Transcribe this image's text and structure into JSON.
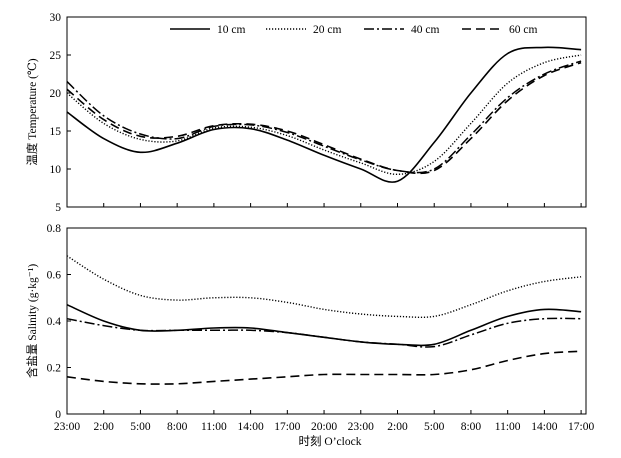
{
  "chart_data": [
    {
      "type": "line",
      "title": "",
      "xlabel": "",
      "ylabel": "温度 Temperature (℃)",
      "ylim": [
        5,
        30
      ],
      "yticks": [
        "5",
        "10",
        "15",
        "20",
        "25",
        "30"
      ],
      "x": [
        0,
        3,
        6,
        9,
        12,
        15,
        18,
        21,
        24,
        27,
        30,
        33,
        36,
        39,
        42
      ],
      "series": [
        {
          "name": "10 cm",
          "values": [
            17.5,
            14.0,
            12.2,
            13.4,
            15.2,
            15.3,
            13.8,
            11.8,
            10.0,
            8.4,
            13.5,
            20.0,
            25.2,
            26.0,
            25.7
          ]
        },
        {
          "name": "20 cm",
          "values": [
            20.0,
            16.0,
            13.9,
            13.7,
            15.4,
            15.5,
            14.4,
            12.5,
            10.8,
            9.3,
            11.0,
            16.0,
            21.3,
            24.0,
            25.0
          ]
        },
        {
          "name": "40 cm",
          "values": [
            21.5,
            17.0,
            14.6,
            14.0,
            15.6,
            15.8,
            14.8,
            13.0,
            11.2,
            9.8,
            10.0,
            14.5,
            19.4,
            22.5,
            24.2
          ]
        },
        {
          "name": "60 cm",
          "values": [
            20.5,
            16.5,
            14.3,
            14.3,
            15.7,
            15.9,
            15.0,
            13.2,
            11.3,
            9.8,
            9.8,
            14.0,
            19.0,
            22.3,
            24.0
          ]
        }
      ],
      "legend": "top-right"
    },
    {
      "type": "line",
      "title": "",
      "xlabel": "时刻 O’clock",
      "ylabel": "含盐量 Salinity (g·kg⁻¹)",
      "ylim": [
        0,
        0.8
      ],
      "yticks": [
        "0",
        "0.2",
        "0.4",
        "0.6",
        "0.8"
      ],
      "xticks": [
        "23:00",
        "2:00",
        "5:00",
        "8:00",
        "11:00",
        "14:00",
        "17:00",
        "20:00",
        "23:00",
        "2:00",
        "5:00",
        "8:00",
        "11:00",
        "14:00",
        "17:00"
      ],
      "x": [
        0,
        3,
        6,
        9,
        12,
        15,
        18,
        21,
        24,
        27,
        30,
        33,
        36,
        39,
        42
      ],
      "series": [
        {
          "name": "10 cm",
          "values": [
            0.47,
            0.4,
            0.36,
            0.36,
            0.37,
            0.37,
            0.35,
            0.33,
            0.31,
            0.3,
            0.3,
            0.36,
            0.42,
            0.45,
            0.44
          ]
        },
        {
          "name": "20 cm",
          "values": [
            0.68,
            0.58,
            0.51,
            0.49,
            0.5,
            0.5,
            0.48,
            0.45,
            0.43,
            0.42,
            0.42,
            0.47,
            0.53,
            0.57,
            0.59
          ]
        },
        {
          "name": "40 cm",
          "values": [
            0.41,
            0.38,
            0.36,
            0.36,
            0.36,
            0.36,
            0.35,
            0.33,
            0.31,
            0.3,
            0.29,
            0.34,
            0.39,
            0.41,
            0.41
          ]
        },
        {
          "name": "60 cm",
          "values": [
            0.16,
            0.14,
            0.13,
            0.13,
            0.14,
            0.15,
            0.16,
            0.17,
            0.17,
            0.17,
            0.17,
            0.19,
            0.23,
            0.26,
            0.27
          ]
        }
      ]
    }
  ]
}
